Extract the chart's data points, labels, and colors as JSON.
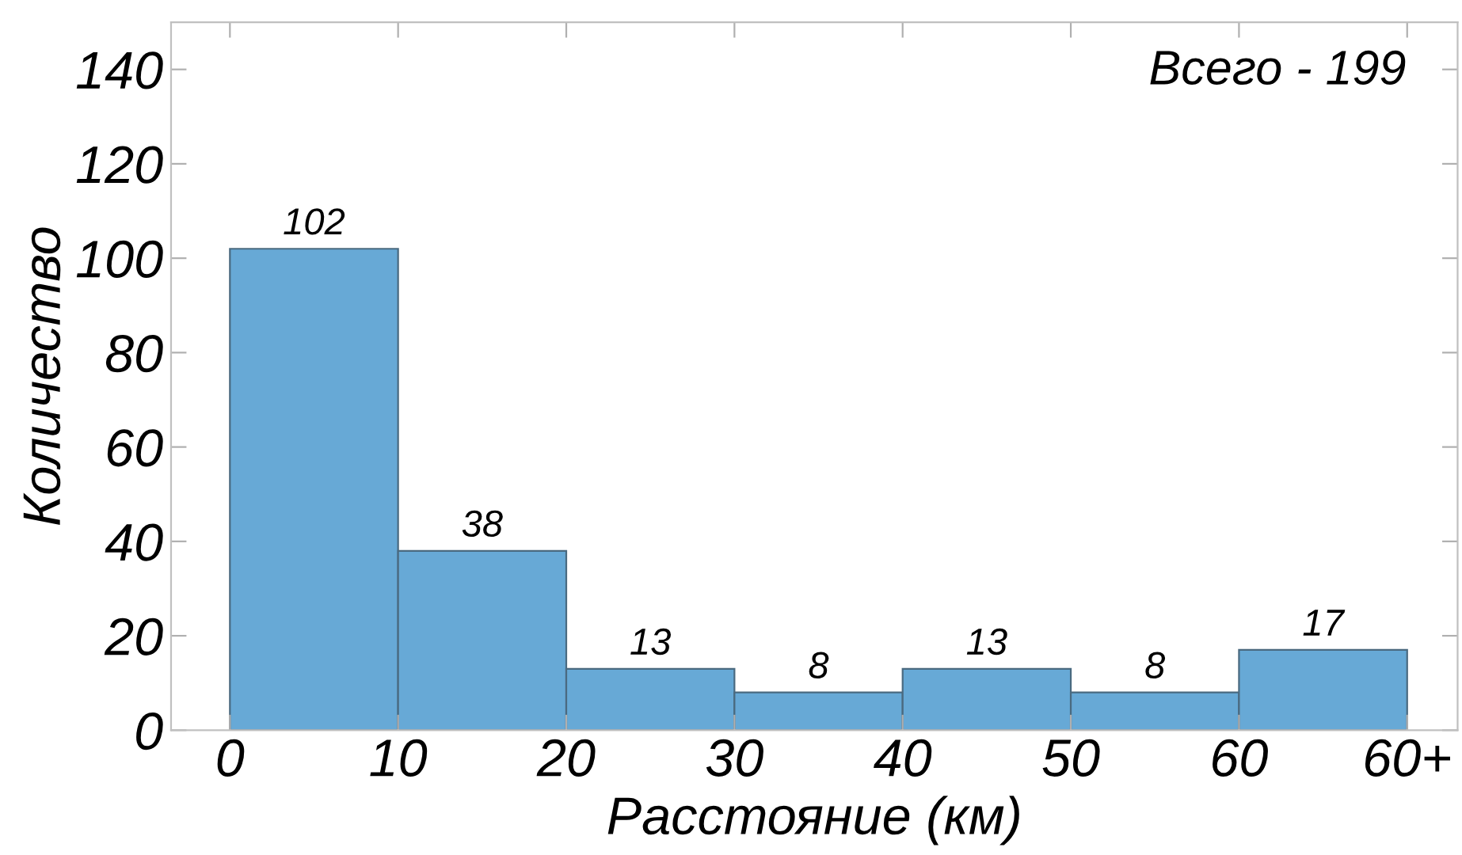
{
  "chart_data": {
    "type": "histogram",
    "xlabel": "Расстояние (км)",
    "ylabel": "Количество",
    "annotations": [
      "Всего - 199"
    ],
    "bins": [
      0,
      10,
      20,
      30,
      40,
      50,
      60,
      70
    ],
    "values": [
      102,
      38,
      13,
      8,
      13,
      8,
      17
    ],
    "color": "#67a9d6",
    "data_labels": true,
    "xlim": [
      -3.5,
      73
    ],
    "ylim": [
      0,
      150
    ],
    "xticks": [
      0,
      10,
      20,
      30,
      40,
      50,
      60,
      {
        "value": 70,
        "label": "60+"
      }
    ],
    "yticks": [
      0,
      20,
      40,
      60,
      80,
      100,
      120,
      140
    ],
    "grid": false
  }
}
